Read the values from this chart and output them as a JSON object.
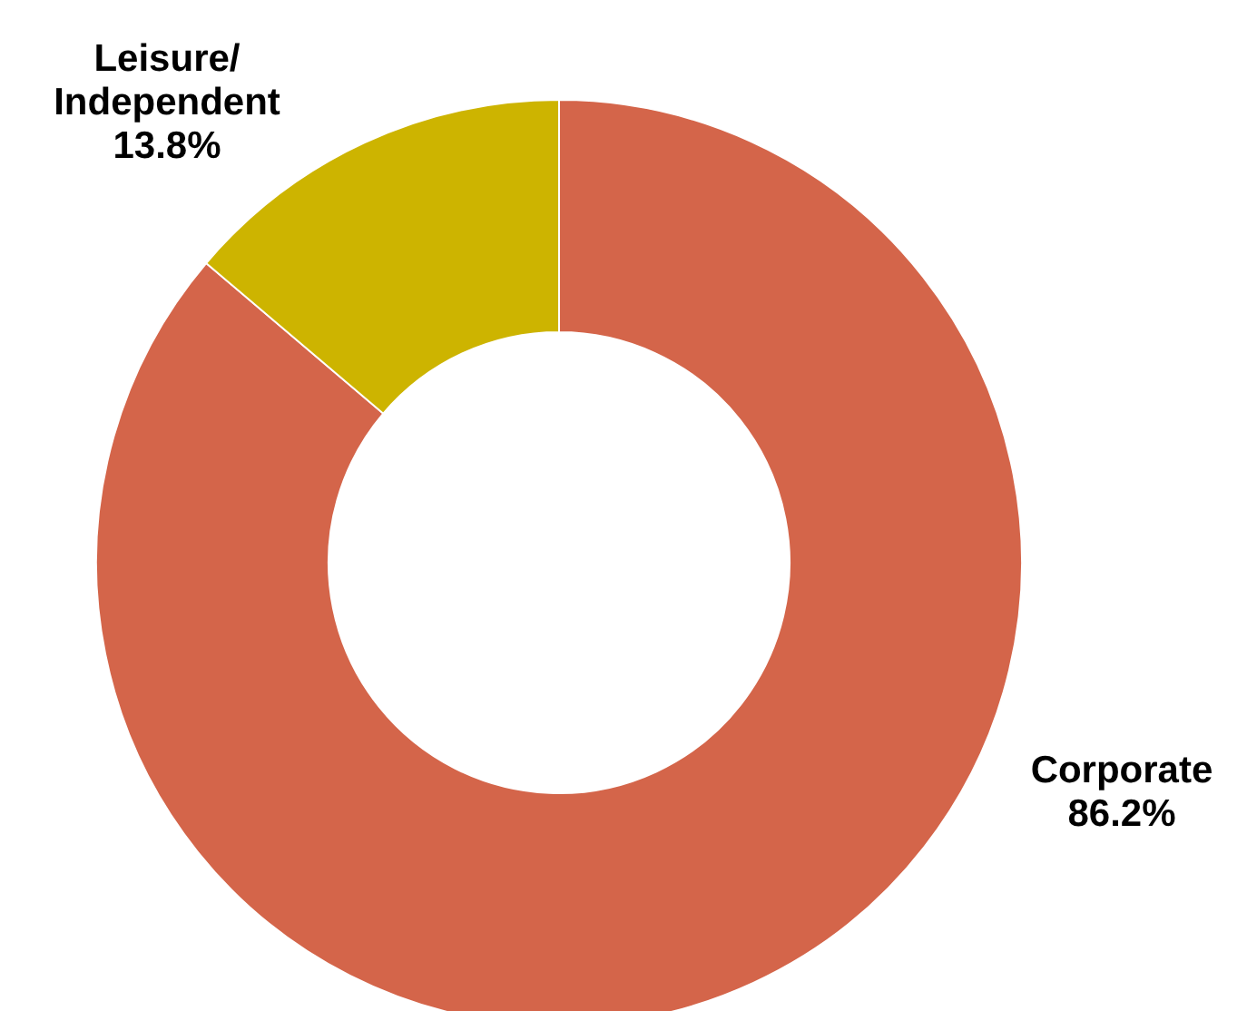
{
  "chart_data": {
    "type": "donut",
    "categories": [
      "Corporate",
      "Leisure/\nIndependent"
    ],
    "values": [
      86.2,
      13.8
    ],
    "colors": [
      "#d4654a",
      "#cdb400"
    ],
    "value_labels": [
      "86.2%",
      "13.8%"
    ],
    "legend": false
  }
}
